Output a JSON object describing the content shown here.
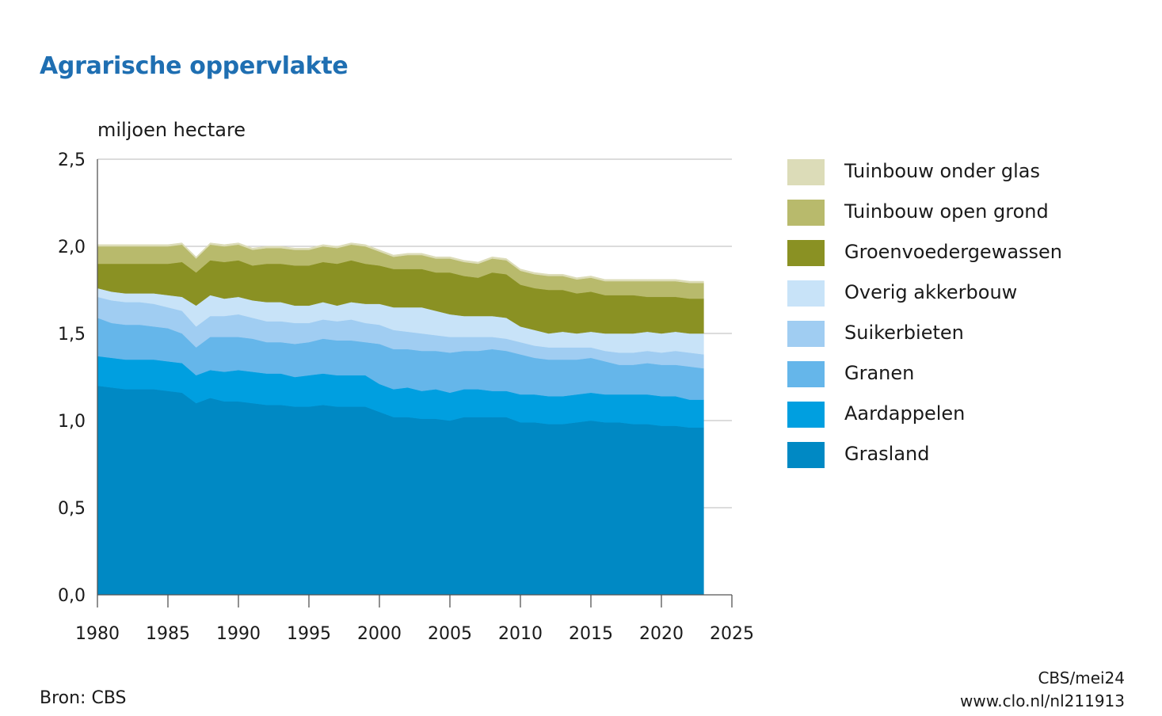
{
  "header": {
    "title": "Agrarische oppervlakte",
    "unit_label": "miljoen hectare"
  },
  "footer": {
    "source": "Bron: CBS",
    "credit_line1": "CBS/mei24",
    "credit_line2": "www.clo.nl/nl211913"
  },
  "colors": {
    "Grasland": "#0089c4",
    "Aardappelen": "#009fe0",
    "Granen": "#65b6ea",
    "Suikerbieten": "#a0cdf2",
    "Overig akkerbouw": "#c8e3f8",
    "Groenvoedergewassen": "#8a9123",
    "Tuinbouw open grond": "#b8ba6c",
    "Tuinbouw onder glas": "#dcdcb8"
  },
  "chart_data": {
    "type": "area",
    "stacked": true,
    "title": "Agrarische oppervlakte",
    "ylabel": "miljoen hectare",
    "xlim": [
      1980,
      2025
    ],
    "ylim": [
      0,
      2.5
    ],
    "x_ticks": [
      1980,
      1985,
      1990,
      1995,
      2000,
      2005,
      2010,
      2015,
      2020,
      2025
    ],
    "y_ticks": [
      "0,0",
      "0,5",
      "1,0",
      "1,5",
      "2,0",
      "2,5"
    ],
    "grid": "horizontal",
    "legend_position": "right",
    "x": [
      1980,
      1981,
      1982,
      1983,
      1984,
      1985,
      1986,
      1987,
      1988,
      1989,
      1990,
      1991,
      1992,
      1993,
      1994,
      1995,
      1996,
      1997,
      1998,
      1999,
      2000,
      2001,
      2002,
      2003,
      2004,
      2005,
      2006,
      2007,
      2008,
      2009,
      2010,
      2011,
      2012,
      2013,
      2014,
      2015,
      2016,
      2017,
      2018,
      2019,
      2020,
      2021,
      2022,
      2023
    ],
    "series": [
      {
        "name": "Grasland",
        "values": [
          1.2,
          1.19,
          1.18,
          1.18,
          1.18,
          1.17,
          1.16,
          1.1,
          1.13,
          1.11,
          1.11,
          1.1,
          1.09,
          1.09,
          1.08,
          1.08,
          1.09,
          1.08,
          1.08,
          1.08,
          1.05,
          1.02,
          1.02,
          1.01,
          1.01,
          1.0,
          1.02,
          1.02,
          1.02,
          1.02,
          0.99,
          0.99,
          0.98,
          0.98,
          0.99,
          1.0,
          0.99,
          0.99,
          0.98,
          0.98,
          0.97,
          0.97,
          0.96,
          0.96
        ]
      },
      {
        "name": "Aardappelen",
        "values": [
          0.17,
          0.17,
          0.17,
          0.17,
          0.17,
          0.17,
          0.17,
          0.16,
          0.16,
          0.17,
          0.18,
          0.18,
          0.18,
          0.18,
          0.17,
          0.18,
          0.18,
          0.18,
          0.18,
          0.18,
          0.16,
          0.16,
          0.17,
          0.16,
          0.17,
          0.16,
          0.16,
          0.16,
          0.15,
          0.15,
          0.16,
          0.16,
          0.16,
          0.16,
          0.16,
          0.16,
          0.16,
          0.16,
          0.17,
          0.17,
          0.17,
          0.17,
          0.16,
          0.16
        ]
      },
      {
        "name": "Granen",
        "values": [
          0.22,
          0.2,
          0.2,
          0.2,
          0.19,
          0.19,
          0.17,
          0.16,
          0.19,
          0.2,
          0.19,
          0.19,
          0.18,
          0.18,
          0.19,
          0.19,
          0.2,
          0.2,
          0.2,
          0.19,
          0.23,
          0.23,
          0.22,
          0.23,
          0.22,
          0.23,
          0.22,
          0.22,
          0.24,
          0.23,
          0.23,
          0.21,
          0.21,
          0.21,
          0.2,
          0.2,
          0.19,
          0.17,
          0.17,
          0.18,
          0.18,
          0.18,
          0.19,
          0.18
        ]
      },
      {
        "name": "Suikerbieten",
        "values": [
          0.12,
          0.13,
          0.13,
          0.13,
          0.13,
          0.12,
          0.13,
          0.12,
          0.12,
          0.12,
          0.13,
          0.12,
          0.12,
          0.12,
          0.12,
          0.11,
          0.11,
          0.11,
          0.12,
          0.11,
          0.11,
          0.11,
          0.1,
          0.1,
          0.09,
          0.09,
          0.08,
          0.08,
          0.07,
          0.07,
          0.07,
          0.07,
          0.07,
          0.07,
          0.07,
          0.06,
          0.06,
          0.07,
          0.07,
          0.07,
          0.07,
          0.08,
          0.08,
          0.08
        ]
      },
      {
        "name": "Overig akkerbouw",
        "values": [
          0.05,
          0.05,
          0.05,
          0.05,
          0.06,
          0.07,
          0.08,
          0.12,
          0.12,
          0.1,
          0.1,
          0.1,
          0.11,
          0.11,
          0.1,
          0.1,
          0.1,
          0.09,
          0.1,
          0.11,
          0.12,
          0.13,
          0.14,
          0.15,
          0.14,
          0.13,
          0.12,
          0.12,
          0.12,
          0.12,
          0.09,
          0.09,
          0.08,
          0.09,
          0.08,
          0.09,
          0.1,
          0.11,
          0.11,
          0.11,
          0.11,
          0.11,
          0.11,
          0.12
        ]
      },
      {
        "name": "Groenvoedergewassen",
        "values": [
          0.14,
          0.16,
          0.17,
          0.17,
          0.17,
          0.18,
          0.2,
          0.19,
          0.2,
          0.21,
          0.21,
          0.2,
          0.22,
          0.22,
          0.23,
          0.23,
          0.23,
          0.24,
          0.24,
          0.23,
          0.22,
          0.22,
          0.22,
          0.22,
          0.22,
          0.24,
          0.23,
          0.22,
          0.25,
          0.25,
          0.24,
          0.24,
          0.25,
          0.24,
          0.23,
          0.23,
          0.22,
          0.22,
          0.22,
          0.2,
          0.21,
          0.2,
          0.2,
          0.2
        ]
      },
      {
        "name": "Tuinbouw open grond",
        "values": [
          0.1,
          0.1,
          0.1,
          0.1,
          0.1,
          0.1,
          0.1,
          0.08,
          0.09,
          0.09,
          0.09,
          0.09,
          0.09,
          0.09,
          0.09,
          0.09,
          0.09,
          0.09,
          0.09,
          0.1,
          0.08,
          0.07,
          0.08,
          0.08,
          0.08,
          0.08,
          0.08,
          0.08,
          0.08,
          0.08,
          0.08,
          0.08,
          0.08,
          0.08,
          0.08,
          0.08,
          0.08,
          0.08,
          0.08,
          0.09,
          0.09,
          0.09,
          0.09,
          0.09
        ]
      },
      {
        "name": "Tuinbouw onder glas",
        "values": [
          0.01,
          0.01,
          0.01,
          0.01,
          0.01,
          0.01,
          0.01,
          0.01,
          0.01,
          0.01,
          0.01,
          0.01,
          0.01,
          0.01,
          0.01,
          0.01,
          0.01,
          0.01,
          0.01,
          0.01,
          0.01,
          0.01,
          0.01,
          0.01,
          0.01,
          0.01,
          0.01,
          0.01,
          0.01,
          0.01,
          0.01,
          0.01,
          0.01,
          0.01,
          0.01,
          0.01,
          0.01,
          0.01,
          0.01,
          0.01,
          0.01,
          0.01,
          0.01,
          0.01
        ]
      }
    ],
    "legend_order": [
      "Tuinbouw onder glas",
      "Tuinbouw open grond",
      "Groenvoedergewassen",
      "Overig akkerbouw",
      "Suikerbieten",
      "Granen",
      "Aardappelen",
      "Grasland"
    ]
  }
}
